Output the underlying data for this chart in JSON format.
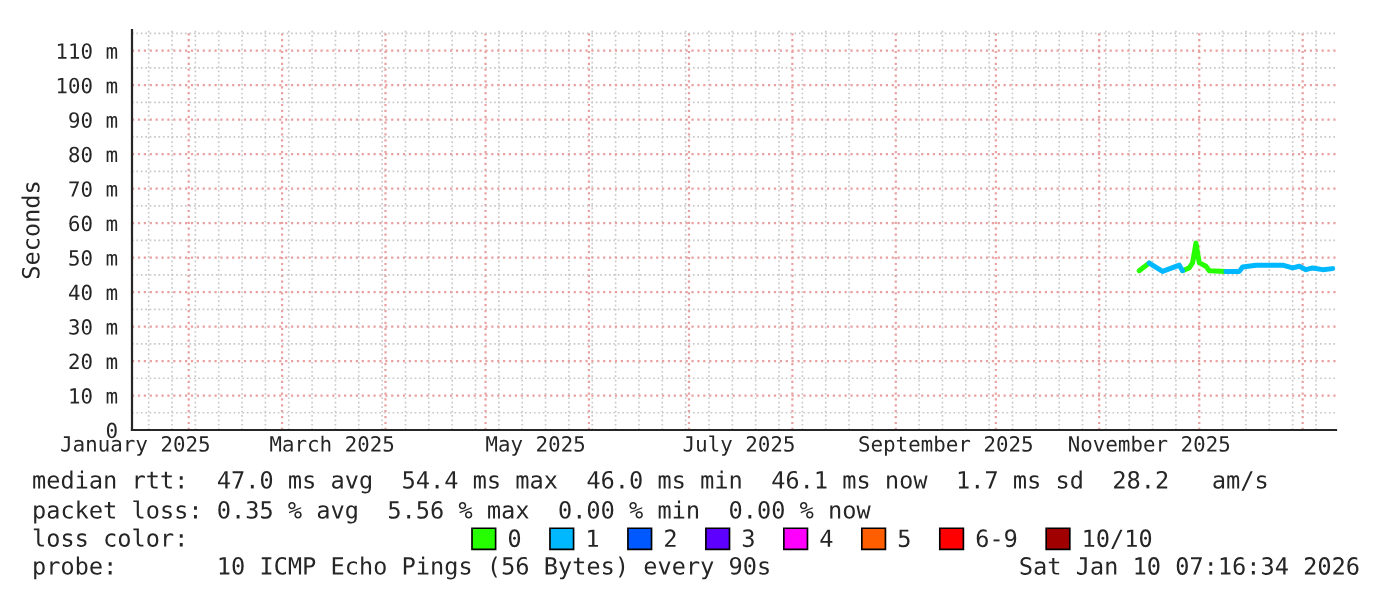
{
  "chart_data": {
    "type": "line",
    "ylabel": "Seconds",
    "x": [
      "2025-11-13",
      "2025-11-16",
      "2025-11-20",
      "2025-11-25",
      "2025-11-26",
      "2025-11-28",
      "2025-11-29",
      "2025-11-30",
      "2025-12-01",
      "2025-12-03",
      "2025-12-04",
      "2025-12-09",
      "2025-12-13",
      "2025-12-14",
      "2025-12-18",
      "2025-12-26",
      "2025-12-29",
      "2025-12-31",
      "2026-01-02",
      "2026-01-04",
      "2026-01-07",
      "2026-01-10"
    ],
    "series": [
      {
        "name": "0",
        "color": "#26ff00",
        "values": [
          46.2,
          48.4,
          null,
          null,
          46.2,
          47.0,
          48.5,
          54.2,
          48.5,
          47.5,
          46.2,
          46.0,
          null,
          null,
          null,
          null,
          null,
          null,
          null,
          null,
          null,
          null
        ]
      },
      {
        "name": "1",
        "color": "#00b8ff",
        "values": [
          null,
          48.4,
          46.0,
          47.8,
          46.2,
          null,
          null,
          null,
          null,
          null,
          null,
          46.0,
          46.0,
          47.3,
          47.8,
          47.8,
          47.0,
          47.5,
          46.5,
          47.0,
          46.5,
          46.8
        ]
      },
      {
        "name": "2",
        "color": "#0059ff",
        "values": [
          null,
          null,
          null,
          null,
          null,
          null,
          null,
          null,
          null,
          null,
          null,
          null,
          null,
          null,
          null,
          null,
          null,
          null,
          null,
          null,
          null,
          null
        ]
      },
      {
        "name": "3",
        "color": "#5e00ff",
        "values": [
          null,
          null,
          null,
          null,
          null,
          null,
          null,
          null,
          null,
          null,
          null,
          null,
          null,
          null,
          null,
          null,
          null,
          null,
          null,
          null,
          null,
          null
        ]
      },
      {
        "name": "4",
        "color": "#ff00ff",
        "values": [
          null,
          null,
          null,
          null,
          null,
          null,
          null,
          null,
          null,
          null,
          null,
          null,
          null,
          null,
          null,
          null,
          null,
          null,
          null,
          null,
          null,
          null
        ]
      },
      {
        "name": "5",
        "color": "#ff5e00",
        "values": [
          null,
          null,
          null,
          null,
          null,
          null,
          null,
          null,
          null,
          null,
          null,
          null,
          null,
          null,
          null,
          null,
          null,
          null,
          null,
          null,
          null,
          null
        ]
      },
      {
        "name": "6-9",
        "color": "#ff0000",
        "values": [
          null,
          null,
          null,
          null,
          null,
          null,
          null,
          null,
          null,
          null,
          null,
          null,
          null,
          null,
          null,
          null,
          null,
          null,
          null,
          null,
          null,
          null
        ]
      },
      {
        "name": "10/10",
        "color": "#a10000",
        "values": [
          null,
          null,
          null,
          null,
          null,
          null,
          null,
          null,
          null,
          null,
          null,
          null,
          null,
          null,
          null,
          null,
          null,
          null,
          null,
          null,
          null,
          null
        ]
      }
    ],
    "xlim": [
      "2025-01-15",
      "2026-01-11"
    ],
    "xticks": [
      {
        "value": "2025-02-01",
        "label": null
      },
      {
        "value": "2025-03-01",
        "label": null
      },
      {
        "value": "2025-04-01",
        "label": null
      },
      {
        "value": "2025-05-01",
        "label": null
      },
      {
        "value": "2025-06-01",
        "label": null
      },
      {
        "value": "2025-07-01",
        "label": null
      },
      {
        "value": "2025-08-01",
        "label": null
      },
      {
        "value": "2025-09-01",
        "label": null
      },
      {
        "value": "2025-10-01",
        "label": null
      },
      {
        "value": "2025-11-01",
        "label": null
      },
      {
        "value": "2025-12-01",
        "label": null
      },
      {
        "value": "2026-01-01",
        "label": null
      },
      {
        "value": "2025-01-16",
        "label": "January 2025"
      },
      {
        "value": "2025-03-16",
        "label": "March 2025"
      },
      {
        "value": "2025-05-16",
        "label": "May 2025"
      },
      {
        "value": "2025-07-16",
        "label": "July 2025"
      },
      {
        "value": "2025-09-16",
        "label": "September 2025"
      },
      {
        "value": "2025-11-16",
        "label": "November 2025"
      }
    ],
    "ylim": [
      0,
      116
    ],
    "yticks": [
      0,
      {
        "value": 10,
        "label": "10 m"
      },
      {
        "value": 20,
        "label": "20 m"
      },
      {
        "value": 30,
        "label": "30 m"
      },
      {
        "value": 40,
        "label": "40 m"
      },
      {
        "value": 50,
        "label": "50 m"
      },
      {
        "value": 60,
        "label": "60 m"
      },
      {
        "value": 70,
        "label": "70 m"
      },
      {
        "value": 80,
        "label": "80 m"
      },
      {
        "value": 90,
        "label": "90 m"
      },
      {
        "value": 100,
        "label": "100 m"
      },
      {
        "value": 110,
        "label": "110 m"
      }
    ],
    "grid": true,
    "legend": "bottom",
    "legend_title": "loss color:",
    "annotations": [
      "median rtt:  47.0 ms avg  54.4 ms max  46.0 ms min  46.1 ms now  1.7 ms sd  28.2   am/s",
      "packet loss: 0.35 % avg  5.56 % max  0.00 % min  0.00 % now",
      "probe:       10 ICMP Echo Pings (56 Bytes) every 90s",
      "Sat Jan 10 07:16:34 2026"
    ]
  }
}
